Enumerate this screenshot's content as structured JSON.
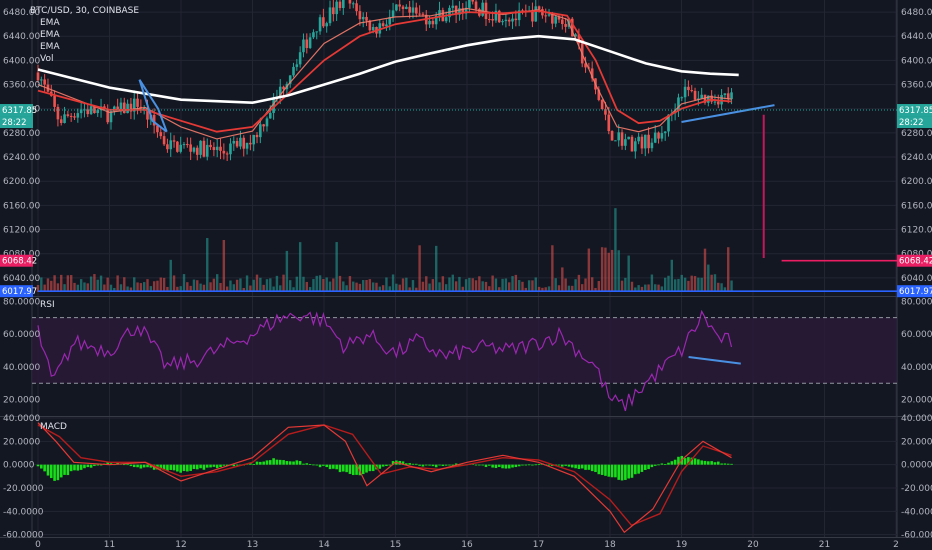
{
  "colors": {
    "background": "#131722",
    "grid": "#232632",
    "divider": "#363a45",
    "axis_text": "#b2b5be",
    "up": "#26a69a",
    "down": "#ef5350",
    "ema_slow": "#ffffff",
    "ema_mid": "#e53935",
    "ema_fast": "#f57c6b",
    "trendline": "#4a90e2",
    "rsi_line": "#9c27b0",
    "rsi_band": "#2a1a3a",
    "macd_line": "#e53935",
    "signal_line": "#b71c1c",
    "histogram": "#18e018",
    "price_tag": "#26a69a",
    "magenta_tag": "#e91e63",
    "blue_tag": "#2962ff"
  },
  "legend": {
    "symbol": "BTC/USD, 30, COINBASE",
    "indicators": [
      "EMA",
      "EMA",
      "EMA",
      "Vol"
    ],
    "rsi_title": "RSI",
    "macd_title": "MACD"
  },
  "tags": {
    "last_price": "6317.85",
    "countdown": "28:22",
    "level_magenta": "6068.42",
    "level_blue": "6017.97"
  },
  "chart_data": [
    {
      "type": "candlestick",
      "title": "BTC/USD, 30, COINBASE",
      "x_ticks": [
        "0",
        "11",
        "12",
        "13",
        "14",
        "15",
        "16",
        "17",
        "18",
        "19",
        "20",
        "21",
        "2"
      ],
      "y_ticks": [
        6040,
        6080,
        6120,
        6160,
        6200,
        6240,
        6280,
        6320,
        6360,
        6400,
        6440,
        6480
      ],
      "ylim": [
        6010,
        6500
      ],
      "keypoints": [
        [
          0.0,
          6380
        ],
        [
          0.3,
          6300
        ],
        [
          0.6,
          6320
        ],
        [
          1.0,
          6310
        ],
        [
          1.4,
          6330
        ],
        [
          1.8,
          6260
        ],
        [
          2.2,
          6255
        ],
        [
          2.6,
          6250
        ],
        [
          3.0,
          6270
        ],
        [
          3.3,
          6330
        ],
        [
          3.6,
          6400
        ],
        [
          3.9,
          6460
        ],
        [
          4.3,
          6500
        ],
        [
          4.7,
          6450
        ],
        [
          5.0,
          6480
        ],
        [
          5.5,
          6470
        ],
        [
          6.0,
          6490
        ],
        [
          6.3,
          6480
        ],
        [
          6.7,
          6470
        ],
        [
          7.0,
          6480
        ],
        [
          7.4,
          6465
        ],
        [
          7.8,
          6350
        ],
        [
          8.0,
          6280
        ],
        [
          8.3,
          6262
        ],
        [
          8.7,
          6270
        ],
        [
          9.0,
          6350
        ],
        [
          9.3,
          6338
        ],
        [
          9.7,
          6340
        ]
      ],
      "ema_slow_points": [
        [
          0.0,
          6385
        ],
        [
          1.0,
          6355
        ],
        [
          2.0,
          6335
        ],
        [
          3.0,
          6330
        ],
        [
          3.5,
          6342
        ],
        [
          4.0,
          6360
        ],
        [
          4.5,
          6378
        ],
        [
          5.0,
          6398
        ],
        [
          5.5,
          6412
        ],
        [
          6.0,
          6425
        ],
        [
          6.5,
          6435
        ],
        [
          7.0,
          6440
        ],
        [
          7.5,
          6435
        ],
        [
          8.0,
          6415
        ],
        [
          8.5,
          6395
        ],
        [
          9.0,
          6382
        ],
        [
          9.4,
          6378
        ],
        [
          9.8,
          6376
        ]
      ],
      "ema_mid_points": [
        [
          0.0,
          6350
        ],
        [
          1.0,
          6318
        ],
        [
          1.5,
          6318
        ],
        [
          2.0,
          6300
        ],
        [
          2.5,
          6282
        ],
        [
          3.0,
          6290
        ],
        [
          3.5,
          6345
        ],
        [
          4.0,
          6400
        ],
        [
          4.5,
          6440
        ],
        [
          5.0,
          6460
        ],
        [
          5.5,
          6470
        ],
        [
          6.0,
          6480
        ],
        [
          6.5,
          6478
        ],
        [
          7.0,
          6482
        ],
        [
          7.4,
          6474
        ],
        [
          7.8,
          6400
        ],
        [
          8.1,
          6318
        ],
        [
          8.4,
          6296
        ],
        [
          8.7,
          6300
        ],
        [
          9.0,
          6320
        ],
        [
          9.4,
          6335
        ],
        [
          9.7,
          6332
        ]
      ],
      "ema_fast_points": [
        [
          0.0,
          6360
        ],
        [
          1.0,
          6314
        ],
        [
          1.5,
          6322
        ],
        [
          2.0,
          6290
        ],
        [
          2.5,
          6270
        ],
        [
          3.0,
          6283
        ],
        [
          3.5,
          6360
        ],
        [
          4.0,
          6428
        ],
        [
          4.5,
          6462
        ],
        [
          5.0,
          6472
        ],
        [
          5.5,
          6474
        ],
        [
          6.0,
          6486
        ],
        [
          6.5,
          6476
        ],
        [
          7.0,
          6484
        ],
        [
          7.4,
          6468
        ],
        [
          7.8,
          6360
        ],
        [
          8.1,
          6290
        ],
        [
          8.4,
          6282
        ],
        [
          8.7,
          6292
        ],
        [
          9.0,
          6328
        ],
        [
          9.4,
          6340
        ],
        [
          9.7,
          6336
        ]
      ],
      "trendlines": [
        {
          "points": [
            [
              1.42,
              6368
            ],
            [
              1.68,
              6320
            ],
            [
              1.8,
              6282
            ]
          ]
        },
        {
          "points": [
            [
              1.42,
              6368
            ],
            [
              1.6,
              6300
            ],
            [
              1.8,
              6282
            ]
          ]
        },
        {
          "points": [
            [
              9.0,
              6298
            ],
            [
              10.3,
              6326
            ]
          ]
        }
      ],
      "vertical_marker": {
        "x": 10.15,
        "top": 6310,
        "bottom": 6073
      },
      "horizontal_levels": [
        {
          "y": 6068.42,
          "from_x": 10.4,
          "color": "magenta"
        },
        {
          "y": 6017.97,
          "from_x": 0.0,
          "color": "blue"
        }
      ],
      "dotted_level": 6317.85
    },
    {
      "type": "line",
      "title": "RSI",
      "y_ticks": [
        20,
        40,
        60,
        80
      ],
      "ylim": [
        10,
        82
      ],
      "bands": [
        30,
        70
      ],
      "keypoints": [
        [
          0.0,
          62
        ],
        [
          0.2,
          30
        ],
        [
          0.5,
          55
        ],
        [
          1.0,
          50
        ],
        [
          1.4,
          66
        ],
        [
          1.8,
          40
        ],
        [
          2.2,
          44
        ],
        [
          2.6,
          52
        ],
        [
          3.0,
          60
        ],
        [
          3.4,
          70
        ],
        [
          3.7,
          72
        ],
        [
          4.0,
          68
        ],
        [
          4.3,
          52
        ],
        [
          4.6,
          60
        ],
        [
          5.0,
          48
        ],
        [
          5.3,
          56
        ],
        [
          5.7,
          46
        ],
        [
          6.0,
          50
        ],
        [
          6.3,
          52
        ],
        [
          6.6,
          50
        ],
        [
          7.0,
          55
        ],
        [
          7.3,
          60
        ],
        [
          7.6,
          48
        ],
        [
          7.8,
          40
        ],
        [
          8.0,
          20
        ],
        [
          8.2,
          16
        ],
        [
          8.5,
          30
        ],
        [
          8.8,
          42
        ],
        [
          9.0,
          50
        ],
        [
          9.3,
          72
        ],
        [
          9.5,
          58
        ],
        [
          9.7,
          55
        ]
      ],
      "trendline": [
        [
          9.1,
          46
        ],
        [
          9.83,
          42
        ]
      ]
    },
    {
      "type": "bar",
      "title": "MACD",
      "y_ticks": [
        -60,
        -40,
        -20,
        0,
        20,
        40
      ],
      "ylim": [
        -62,
        40
      ],
      "hist_keypoints": [
        [
          0.0,
          -2
        ],
        [
          0.25,
          -14
        ],
        [
          0.5,
          -5
        ],
        [
          1.0,
          2
        ],
        [
          1.5,
          -3
        ],
        [
          2.0,
          -6
        ],
        [
          2.5,
          -2
        ],
        [
          3.0,
          1
        ],
        [
          3.3,
          5
        ],
        [
          3.6,
          3
        ],
        [
          4.0,
          -2
        ],
        [
          4.5,
          -10
        ],
        [
          5.0,
          3
        ],
        [
          5.5,
          -2
        ],
        [
          6.0,
          1
        ],
        [
          6.5,
          -3
        ],
        [
          7.0,
          1
        ],
        [
          7.5,
          -2
        ],
        [
          8.0,
          -10
        ],
        [
          8.2,
          -14
        ],
        [
          8.5,
          -4
        ],
        [
          8.8,
          2
        ],
        [
          9.0,
          7
        ],
        [
          9.3,
          3
        ],
        [
          9.7,
          1
        ]
      ],
      "macd_keypoints": [
        [
          0.0,
          36
        ],
        [
          0.25,
          20
        ],
        [
          0.5,
          2
        ],
        [
          1.0,
          0
        ],
        [
          1.5,
          2
        ],
        [
          2.0,
          -14
        ],
        [
          2.5,
          -4
        ],
        [
          3.0,
          6
        ],
        [
          3.5,
          32
        ],
        [
          4.0,
          34
        ],
        [
          4.3,
          20
        ],
        [
          4.6,
          -18
        ],
        [
          5.0,
          2
        ],
        [
          5.5,
          -6
        ],
        [
          6.0,
          2
        ],
        [
          6.5,
          8
        ],
        [
          7.0,
          2
        ],
        [
          7.5,
          -10
        ],
        [
          8.0,
          -40
        ],
        [
          8.2,
          -58
        ],
        [
          8.6,
          -38
        ],
        [
          9.0,
          4
        ],
        [
          9.3,
          20
        ],
        [
          9.7,
          6
        ]
      ],
      "signal_keypoints": [
        [
          0.0,
          34
        ],
        [
          0.3,
          24
        ],
        [
          0.6,
          6
        ],
        [
          1.0,
          2
        ],
        [
          1.5,
          2
        ],
        [
          2.0,
          -10
        ],
        [
          2.5,
          -6
        ],
        [
          3.0,
          2
        ],
        [
          3.5,
          26
        ],
        [
          4.0,
          34
        ],
        [
          4.4,
          26
        ],
        [
          4.8,
          -8
        ],
        [
          5.2,
          -2
        ],
        [
          5.6,
          -4
        ],
        [
          6.0,
          0
        ],
        [
          6.5,
          6
        ],
        [
          7.0,
          4
        ],
        [
          7.5,
          -6
        ],
        [
          8.0,
          -30
        ],
        [
          8.3,
          -52
        ],
        [
          8.7,
          -42
        ],
        [
          9.0,
          -6
        ],
        [
          9.3,
          16
        ],
        [
          9.7,
          8
        ]
      ]
    }
  ]
}
